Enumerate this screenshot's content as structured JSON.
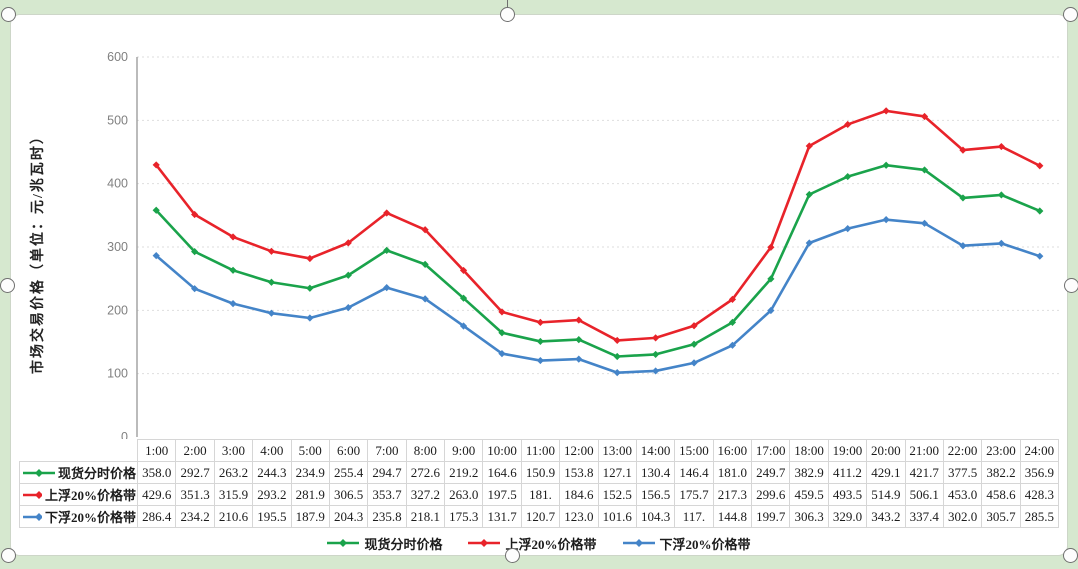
{
  "colors": {
    "page_background": "#d6e8cf",
    "card_background": "#ffffff",
    "spot": "#1aa34b",
    "upper": "#e8232a",
    "lower": "#4484c8",
    "grid": "#dedede",
    "axis": "#9e9e9e",
    "tick_text": "#808080",
    "table_border": "#d6d6d6"
  },
  "chart_data": {
    "type": "line",
    "title": "",
    "xlabel": "",
    "ylabel": "市场交易价格（单位：元/兆瓦时）",
    "ylim": [
      0,
      600
    ],
    "yticks": [
      0,
      100,
      200,
      300,
      400,
      500,
      600
    ],
    "grid": true,
    "legend_position": "bottom",
    "marker": "diamond",
    "categories": [
      "1:00",
      "2:00",
      "3:00",
      "4:00",
      "5:00",
      "6:00",
      "7:00",
      "8:00",
      "9:00",
      "10:00",
      "11:00",
      "12:00",
      "13:00",
      "14:00",
      "15:00",
      "16:00",
      "17:00",
      "18:00",
      "19:00",
      "20:00",
      "21:00",
      "22:00",
      "23:00",
      "24:00"
    ],
    "series": [
      {
        "name": "现货分时价格",
        "color": "#1aa34b",
        "values": [
          358.0,
          292.7,
          263.2,
          244.3,
          234.9,
          255.4,
          294.7,
          272.6,
          219.2,
          164.6,
          150.9,
          153.8,
          127.1,
          130.4,
          146.4,
          181.0,
          249.7,
          382.9,
          411.2,
          429.1,
          421.7,
          377.5,
          382.2,
          356.9
        ]
      },
      {
        "name": "上浮20%价格带",
        "color": "#e8232a",
        "values": [
          429.6,
          351.3,
          315.9,
          293.2,
          281.9,
          306.5,
          353.7,
          327.2,
          263.0,
          197.5,
          181.0,
          184.6,
          152.5,
          156.5,
          175.7,
          217.3,
          299.6,
          459.5,
          493.5,
          514.9,
          506.1,
          453.0,
          458.6,
          428.3
        ]
      },
      {
        "name": "下浮20%价格带",
        "color": "#4484c8",
        "values": [
          286.4,
          234.2,
          210.6,
          195.5,
          187.9,
          204.3,
          235.8,
          218.1,
          175.3,
          131.7,
          120.7,
          123.0,
          101.6,
          104.3,
          117.0,
          144.8,
          199.7,
          306.3,
          329.0,
          343.2,
          337.4,
          302.0,
          305.7,
          285.5
        ]
      }
    ]
  },
  "table": {
    "corner_label": "",
    "rows": [
      {
        "label": "现货分时价格",
        "color": "#1aa34b",
        "cells": [
          "358.0",
          "292.7",
          "263.2",
          "244.3",
          "234.9",
          "255.4",
          "294.7",
          "272.6",
          "219.2",
          "164.6",
          "150.9",
          "153.8",
          "127.1",
          "130.4",
          "146.4",
          "181.0",
          "249.7",
          "382.9",
          "411.2",
          "429.1",
          "421.7",
          "377.5",
          "382.2",
          "356.9"
        ]
      },
      {
        "label": "上浮20%价格带",
        "color": "#e8232a",
        "cells": [
          "429.6",
          "351.3",
          "315.9",
          "293.2",
          "281.9",
          "306.5",
          "353.7",
          "327.2",
          "263.0",
          "197.5",
          "181.",
          "184.6",
          "152.5",
          "156.5",
          "175.7",
          "217.3",
          "299.6",
          "459.5",
          "493.5",
          "514.9",
          "506.1",
          "453.0",
          "458.6",
          "428.3"
        ]
      },
      {
        "label": "下浮20%价格带",
        "color": "#4484c8",
        "cells": [
          "286.4",
          "234.2",
          "210.6",
          "195.5",
          "187.9",
          "204.3",
          "235.8",
          "218.1",
          "175.3",
          "131.7",
          "120.7",
          "123.0",
          "101.6",
          "104.3",
          "117.",
          "144.8",
          "199.7",
          "306.3",
          "329.0",
          "343.2",
          "337.4",
          "302.0",
          "305.7",
          "285.5"
        ]
      }
    ]
  },
  "legend": {
    "items": [
      {
        "label": "现货分时价格",
        "color": "#1aa34b"
      },
      {
        "label": "上浮20%价格带",
        "color": "#e8232a"
      },
      {
        "label": "下浮20%价格带",
        "color": "#4484c8"
      }
    ]
  }
}
